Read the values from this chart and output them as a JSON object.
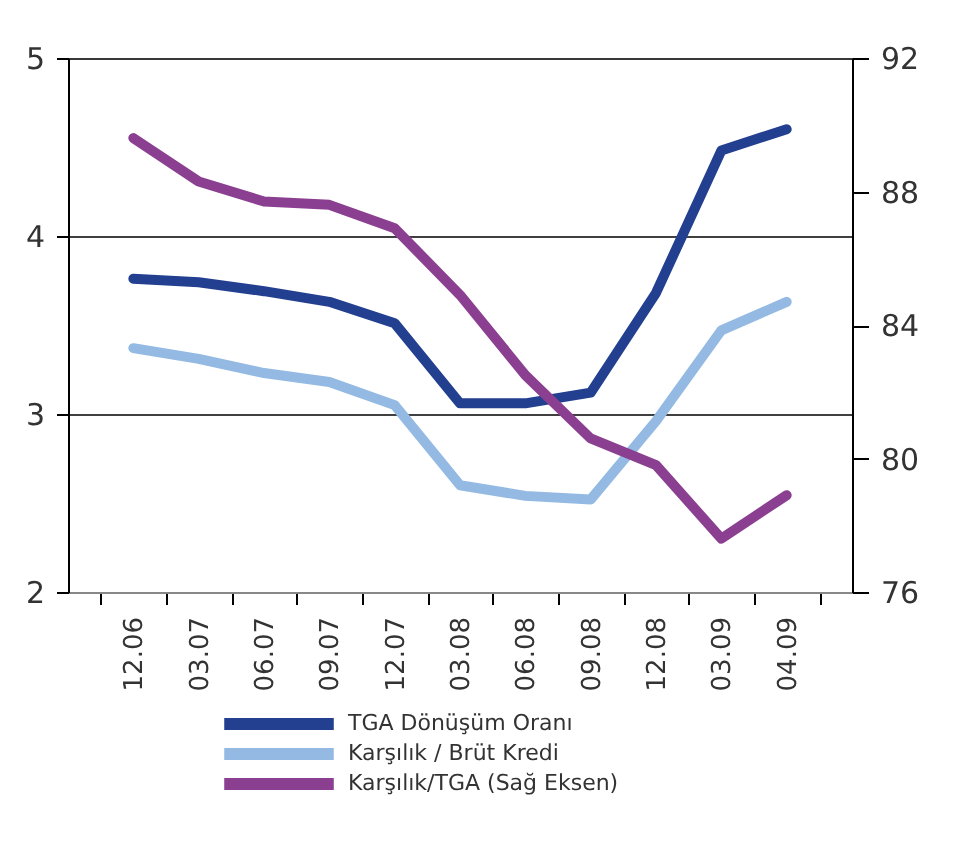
{
  "chart_data": {
    "type": "line",
    "categories": [
      "12.06",
      "03.07",
      "06.07",
      "09.07",
      "12.07",
      "03.08",
      "06.08",
      "09.08",
      "12.08",
      "03.09",
      "04.09"
    ],
    "series": [
      {
        "name": "TGA Dönüşüm Oranı",
        "color": "#233f8f",
        "values": [
          3.76,
          3.74,
          3.69,
          3.63,
          3.51,
          3.06,
          3.06,
          3.12,
          3.68,
          4.48,
          4.6
        ]
      },
      {
        "name": "Karşılık / Brüt Kredi",
        "color": "#94bae3",
        "values": [
          3.37,
          3.31,
          3.23,
          3.18,
          3.05,
          2.6,
          2.54,
          2.52,
          2.96,
          3.47,
          3.63
        ]
      },
      {
        "name": "Karşılık/TGA (Sağ Eksen)",
        "color": "#8b3f91",
        "axis": "y2",
        "values": [
          89.6,
          88.3,
          87.7,
          87.6,
          86.9,
          84.9,
          82.5,
          80.6,
          79.8,
          77.6,
          78.9
        ]
      }
    ],
    "ylim": [
      2,
      5
    ],
    "yticks": [
      2,
      3,
      4,
      5
    ],
    "y2lim": [
      76,
      92
    ],
    "y2ticks": [
      76,
      80,
      84,
      88,
      92
    ],
    "grid": "y",
    "legend": "bottom",
    "marker": "none",
    "line_style": "solid"
  }
}
